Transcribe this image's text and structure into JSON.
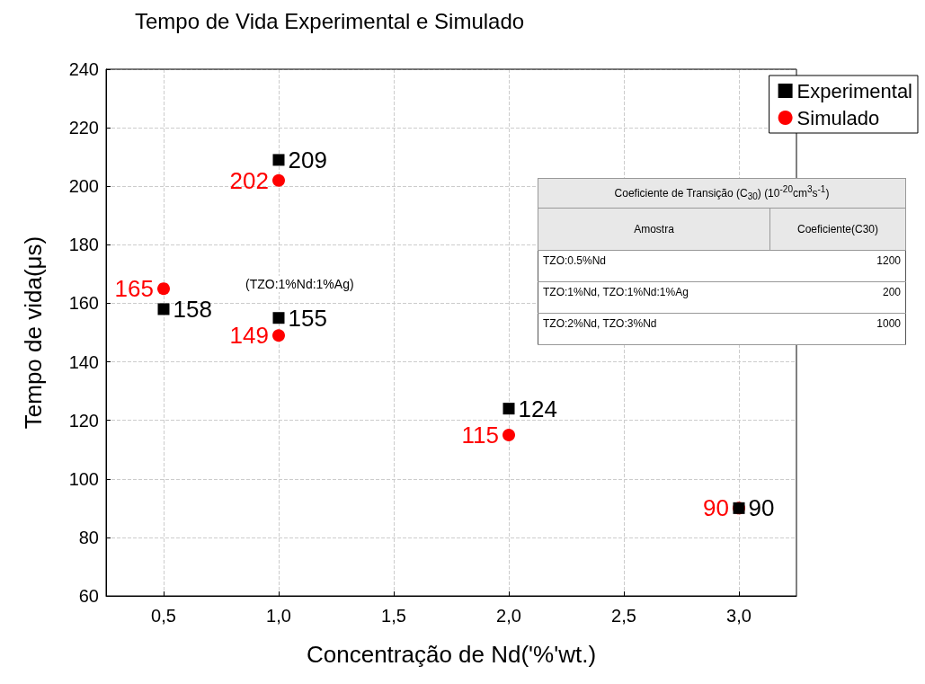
{
  "chart_data": {
    "type": "scatter",
    "title": "Tempo de Vida Experimental e Simulado",
    "xlabel": "Concentração de Nd('%'wt.)",
    "ylabel": "Tempo de vida(μs)",
    "x": [
      0.5,
      1,
      1,
      2,
      3
    ],
    "series": [
      {
        "name": "Experimental",
        "color": "#000000",
        "marker": "square",
        "values": [
          158,
          209,
          155,
          124,
          90
        ]
      },
      {
        "name": "Simulado",
        "color": "#ff0000",
        "marker": "circle",
        "values": [
          165,
          202,
          149,
          115,
          90
        ]
      }
    ],
    "xlim": [
      0.25,
      3.25
    ],
    "xticks": [
      {
        "value": 0.5,
        "label": "0,5"
      },
      {
        "value": 1,
        "label": "1,0"
      },
      {
        "value": 1.5,
        "label": "1,5"
      },
      {
        "value": 2,
        "label": "2,0"
      },
      {
        "value": 2.5,
        "label": "2,5"
      },
      {
        "value": 3,
        "label": "3,0"
      }
    ],
    "ylim": [
      60,
      240
    ],
    "yticks": [
      60,
      80,
      100,
      120,
      140,
      160,
      180,
      200,
      220,
      240
    ],
    "grid": true,
    "legend": "top right",
    "data_labels": true,
    "annotations": [
      {
        "text": "(TZO:1%Nd:1%Ag)",
        "x": 1,
        "y": 155
      },
      "Coeficiente de Transição (C$_{30}$) (10$^{-20}$cm$^{3}$s$^{-1}$)",
      "Amostra",
      "Coeficiente(C30)",
      "TZO:0.5%Nd",
      "1200",
      "TZO:1%Nd, TZO:1%Nd:1%Ag",
      "200",
      "TZO:2%Nd, TZO:3%Nd",
      "1000"
    ]
  }
}
